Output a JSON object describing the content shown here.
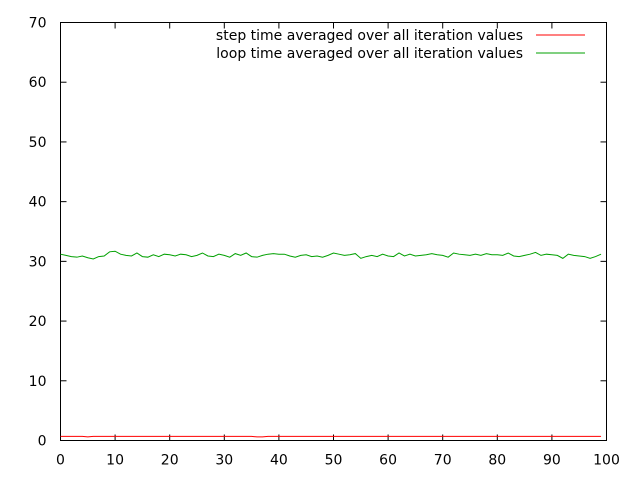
{
  "chart_data": {
    "type": "line",
    "title": "",
    "xlabel": "",
    "ylabel": "",
    "xlim": [
      0,
      100
    ],
    "ylim": [
      0,
      70
    ],
    "x_ticks": [
      0,
      10,
      20,
      30,
      40,
      50,
      60,
      70,
      80,
      90,
      100
    ],
    "y_ticks": [
      0,
      10,
      20,
      30,
      40,
      50,
      60,
      70
    ],
    "x_tick_labels": [
      "0",
      "10",
      "20",
      "30",
      "40",
      "50",
      "60",
      "70",
      "80",
      "90",
      "100"
    ],
    "y_tick_labels": [
      "0",
      "10",
      "20",
      "30",
      "40",
      "50",
      "60",
      "70"
    ],
    "grid": false,
    "legend_position": "top-right",
    "series": [
      {
        "name": "step time averaged over all iteration values",
        "color": "#ff0000",
        "values": [
          0.7,
          0.7,
          0.7,
          0.7,
          0.7,
          0.6,
          0.7,
          0.7,
          0.7,
          0.7,
          0.7,
          0.7,
          0.7,
          0.7,
          0.7,
          0.7,
          0.7,
          0.7,
          0.7,
          0.7,
          0.7,
          0.7,
          0.7,
          0.7,
          0.7,
          0.7,
          0.7,
          0.7,
          0.7,
          0.7,
          0.7,
          0.7,
          0.7,
          0.7,
          0.7,
          0.7,
          0.6,
          0.6,
          0.7,
          0.7,
          0.7,
          0.7,
          0.7,
          0.7,
          0.7,
          0.7,
          0.7,
          0.7,
          0.7,
          0.7,
          0.7,
          0.7,
          0.7,
          0.7,
          0.7,
          0.7,
          0.7,
          0.7,
          0.7,
          0.7,
          0.7,
          0.7,
          0.7,
          0.7,
          0.7,
          0.7,
          0.7,
          0.7,
          0.7,
          0.7,
          0.7,
          0.7,
          0.7,
          0.7,
          0.7,
          0.7,
          0.7,
          0.7,
          0.7,
          0.7,
          0.7,
          0.7,
          0.7,
          0.7,
          0.7,
          0.7,
          0.7,
          0.7,
          0.7,
          0.7,
          0.7,
          0.7,
          0.7,
          0.7,
          0.7,
          0.7,
          0.7,
          0.7,
          0.7,
          0.7
        ]
      },
      {
        "name": "loop time averaged over all iteration values",
        "color": "#00a000",
        "values": [
          31.2,
          31.0,
          30.8,
          30.7,
          30.9,
          30.6,
          30.4,
          30.8,
          30.9,
          31.6,
          31.7,
          31.2,
          31.0,
          30.9,
          31.4,
          30.8,
          30.7,
          31.1,
          30.8,
          31.2,
          31.1,
          30.9,
          31.2,
          31.1,
          30.8,
          31.0,
          31.4,
          30.9,
          30.8,
          31.2,
          31.0,
          30.7,
          31.3,
          31.0,
          31.4,
          30.8,
          30.7,
          31.0,
          31.2,
          31.3,
          31.2,
          31.2,
          30.9,
          30.7,
          31.0,
          31.1,
          30.8,
          30.9,
          30.7,
          31.0,
          31.4,
          31.2,
          31.0,
          31.1,
          31.3,
          30.5,
          30.8,
          31.0,
          30.8,
          31.2,
          30.9,
          30.8,
          31.4,
          30.9,
          31.2,
          30.9,
          31.0,
          31.1,
          31.3,
          31.1,
          31.0,
          30.7,
          31.4,
          31.2,
          31.1,
          31.0,
          31.2,
          31.0,
          31.3,
          31.1,
          31.1,
          31.0,
          31.4,
          30.9,
          30.8,
          31.0,
          31.2,
          31.5,
          31.0,
          31.2,
          31.1,
          31.0,
          30.5,
          31.2,
          31.0,
          30.9,
          30.8,
          30.5,
          30.8,
          31.2
        ]
      }
    ]
  }
}
